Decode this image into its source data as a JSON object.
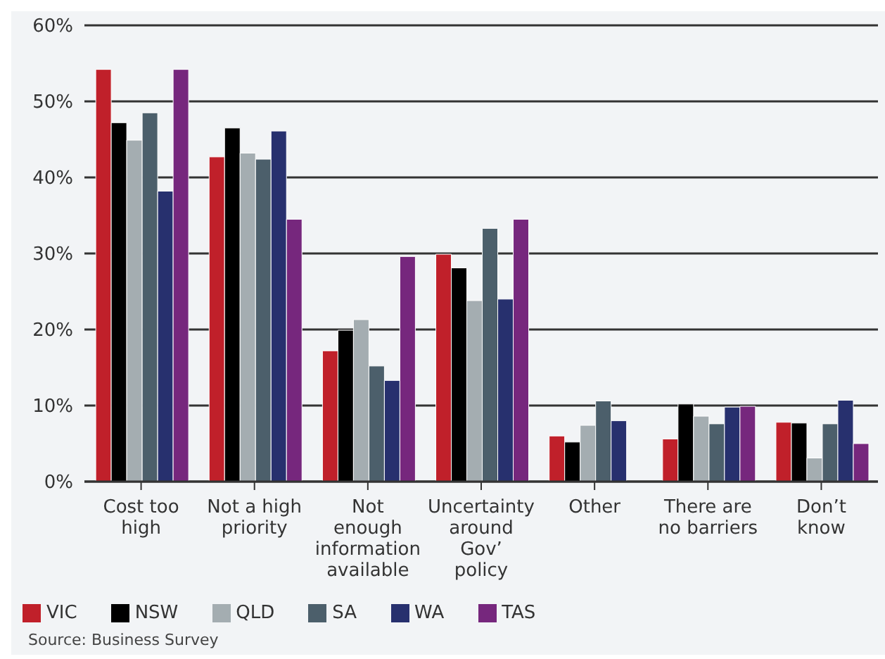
{
  "chart_data": {
    "type": "bar",
    "categories": [
      "Cost too\nhigh",
      "Not a high\npriority",
      "Not\nenough\ninformation\navailable",
      "Uncertainty\naround\nGov’\npolicy",
      "Other",
      "There are\nno barriers",
      "Don’t\nknow"
    ],
    "series": [
      {
        "name": "VIC",
        "color": "#c0202a",
        "values": [
          54.2,
          42.7,
          17.2,
          29.9,
          6.0,
          5.6,
          7.8
        ]
      },
      {
        "name": "NSW",
        "color": "#000000",
        "values": [
          47.2,
          46.5,
          19.9,
          28.1,
          5.2,
          10.2,
          7.7
        ]
      },
      {
        "name": "QLD",
        "color": "#a4adb1",
        "values": [
          44.9,
          43.2,
          21.3,
          23.8,
          7.4,
          8.6,
          3.1
        ]
      },
      {
        "name": "SA",
        "color": "#4c5f6b",
        "values": [
          48.5,
          42.4,
          15.2,
          33.3,
          10.6,
          7.6,
          7.6
        ]
      },
      {
        "name": "WA",
        "color": "#27306e",
        "values": [
          38.2,
          46.1,
          13.3,
          24.0,
          8.0,
          9.8,
          10.7
        ]
      },
      {
        "name": "TAS",
        "color": "#76277d",
        "values": [
          54.2,
          34.5,
          29.6,
          34.5,
          null,
          9.9,
          5.0
        ]
      }
    ],
    "ylim": [
      0,
      60
    ],
    "yticks": [
      {
        "value": 0,
        "label": "0%"
      },
      {
        "value": 10,
        "label": "10%"
      },
      {
        "value": 20,
        "label": "20%"
      },
      {
        "value": 30,
        "label": "30%"
      },
      {
        "value": 40,
        "label": "40%"
      },
      {
        "value": 50,
        "label": "50%"
      },
      {
        "value": 60,
        "label": "60%"
      }
    ],
    "grid": "y",
    "legend": "bottom left",
    "annotations": [
      "Source: Business Survey"
    ]
  }
}
